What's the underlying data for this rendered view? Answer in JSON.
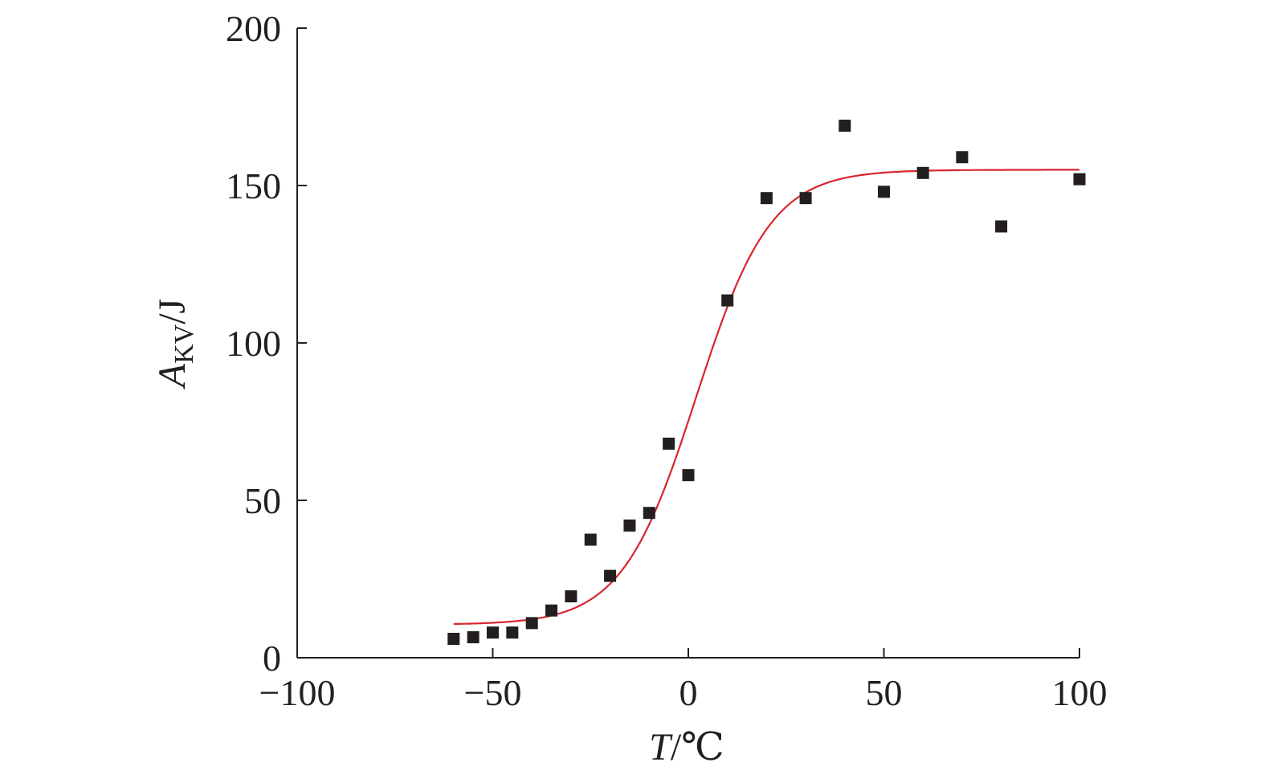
{
  "chart_data": {
    "type": "scatter",
    "xlabel": {
      "var": "T",
      "unit": "/℃"
    },
    "ylabel": {
      "var": "A",
      "sub": "KV",
      "unit": "/J"
    },
    "xlim": [
      -100,
      100
    ],
    "ylim": [
      0,
      200
    ],
    "x_ticks": [
      -100,
      -50,
      0,
      50,
      100
    ],
    "x_tick_labels": [
      "−100",
      "−50",
      "0",
      "50",
      "100"
    ],
    "y_ticks": [
      0,
      50,
      100,
      150,
      200
    ],
    "y_tick_labels": [
      "0",
      "50",
      "100",
      "150",
      "200"
    ],
    "grid": false,
    "series": [
      {
        "kind": "scatter",
        "marker": "square",
        "color": "#231f20",
        "points": [
          [
            -60,
            6
          ],
          [
            -55,
            6.5
          ],
          [
            -50,
            8
          ],
          [
            -45,
            8
          ],
          [
            -40,
            11
          ],
          [
            -35,
            15
          ],
          [
            -30,
            19.5
          ],
          [
            -25,
            37.5
          ],
          [
            -20,
            26
          ],
          [
            -15,
            42
          ],
          [
            -10,
            46
          ],
          [
            -5,
            68
          ],
          [
            0,
            58
          ],
          [
            10,
            113.5
          ],
          [
            20,
            146
          ],
          [
            30,
            146
          ],
          [
            40,
            169
          ],
          [
            50,
            148
          ],
          [
            60,
            154
          ],
          [
            70,
            159
          ],
          [
            80,
            137
          ],
          [
            100,
            152
          ]
        ]
      },
      {
        "kind": "fit-line",
        "shape": "sigmoid",
        "color": "#d7262c",
        "x_range": [
          -60,
          100
        ],
        "params": {
          "A1": 10.5,
          "A2": 155,
          "x0": 2,
          "dx": 9.5
        },
        "points": [
          [
            -60,
            10.5
          ],
          [
            -50,
            12
          ],
          [
            -40,
            13.5
          ],
          [
            -30,
            17.5
          ],
          [
            -20,
            27
          ],
          [
            -10,
            48
          ],
          [
            -5,
            64
          ],
          [
            0,
            77
          ],
          [
            5,
            98
          ],
          [
            10,
            114
          ],
          [
            20,
            139
          ],
          [
            30,
            150
          ],
          [
            40,
            153
          ],
          [
            50,
            154
          ],
          [
            60,
            155
          ],
          [
            70,
            155
          ],
          [
            80,
            155
          ],
          [
            90,
            155
          ],
          [
            100,
            155
          ]
        ]
      }
    ]
  }
}
